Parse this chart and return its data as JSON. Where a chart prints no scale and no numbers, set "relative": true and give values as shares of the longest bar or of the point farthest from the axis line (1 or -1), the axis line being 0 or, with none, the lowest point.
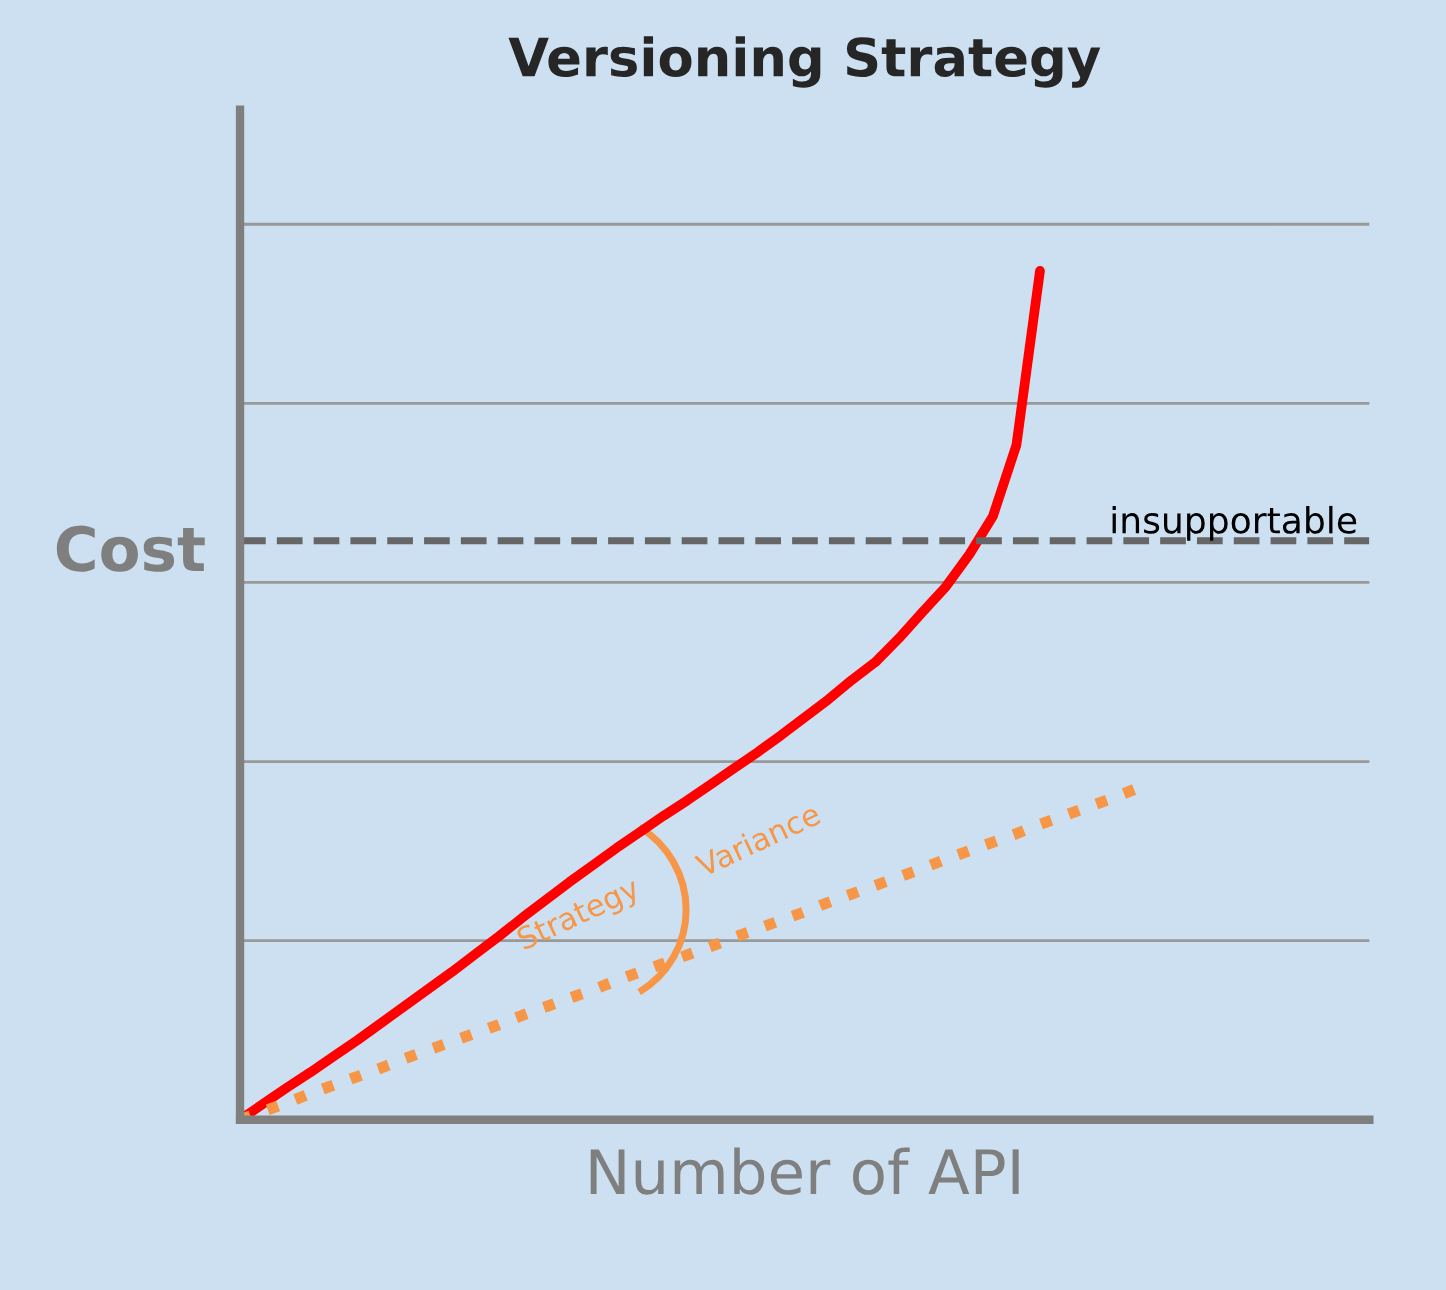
{
  "chart_data": {
    "type": "line",
    "title": "Versioning Strategy",
    "xlabel": "Number of API",
    "ylabel": "Cost",
    "relative": true,
    "categories": [
      null,
      null,
      null,
      null,
      null,
      null,
      null,
      null,
      null,
      null,
      null,
      null,
      null,
      null,
      null,
      null,
      null,
      null,
      null,
      null,
      null,
      null,
      null,
      null,
      null,
      null,
      null,
      null,
      null,
      null,
      null,
      null,
      null,
      null,
      null,
      null,
      null,
      null,
      null,
      null,
      null,
      null,
      null,
      null,
      null,
      null,
      null,
      null,
      null
    ],
    "series": [
      {
        "color": "#ff0000",
        "line_style": "solid",
        "values": [
          0,
          0.019,
          0.038,
          0.056,
          0.075,
          0.094,
          0.114,
          0.134,
          0.154,
          0.174,
          0.195,
          0.216,
          0.238,
          0.259,
          0.28,
          0.3,
          0.32,
          0.339,
          0.358,
          0.376,
          0.395,
          0.414,
          0.433,
          0.453,
          0.474,
          0.495,
          0.518,
          0.539,
          0.567,
          0.598,
          0.628,
          0.666,
          0.711,
          0.795,
          1,
          null,
          null,
          null,
          null,
          null,
          null,
          null,
          null,
          null,
          null,
          null,
          null,
          null,
          null
        ]
      },
      {
        "color": "#f79646",
        "line_style": "dotted",
        "values": [
          0,
          0.01,
          0.02,
          0.031,
          0.041,
          0.051,
          0.061,
          0.072,
          0.082,
          0.092,
          0.102,
          0.112,
          0.123,
          0.133,
          0.143,
          0.153,
          0.164,
          0.174,
          0.184,
          0.194,
          0.204,
          0.215,
          0.225,
          0.235,
          0.245,
          0.256,
          0.266,
          0.276,
          0.286,
          0.296,
          0.307,
          0.317,
          0.327,
          0.337,
          0.348,
          0.358,
          0.368,
          0.378,
          0.389,
          null,
          null,
          null,
          null,
          null,
          null,
          null,
          null,
          null,
          null
        ]
      }
    ],
    "ref_lines": [
      {
        "axis": "y",
        "value": 0.682,
        "label": "insupportable",
        "color": "#666666",
        "line_style": "dashed"
      }
    ],
    "annotations": [
      "Strategy",
      "Variance"
    ],
    "grid": "y",
    "tick_labels": false
  }
}
